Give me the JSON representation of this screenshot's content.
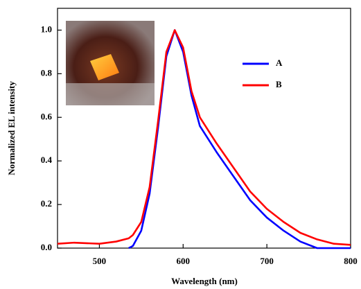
{
  "chart_data": {
    "type": "line",
    "x_label": "Wavelength (nm)",
    "y_label": "Normalized EL intensity",
    "x": [
      450,
      470,
      500,
      520,
      535,
      540,
      550,
      560,
      570,
      580,
      590,
      600,
      610,
      620,
      640,
      660,
      680,
      700,
      720,
      740,
      760,
      780,
      800
    ],
    "series": [
      {
        "name": "A",
        "color": "#0000ff",
        "values": [
          null,
          null,
          null,
          null,
          0,
          0.01,
          0.08,
          0.25,
          0.55,
          0.88,
          1.0,
          0.9,
          0.7,
          0.56,
          0.44,
          0.33,
          0.22,
          0.14,
          0.08,
          0.03,
          0,
          0,
          0
        ]
      },
      {
        "name": "B",
        "color": "#ff0000",
        "values": [
          0.02,
          0.025,
          0.02,
          0.03,
          0.045,
          0.06,
          0.12,
          0.28,
          0.58,
          0.9,
          1.0,
          0.92,
          0.72,
          0.6,
          0.48,
          0.37,
          0.26,
          0.18,
          0.12,
          0.07,
          0.04,
          0.02,
          0.015
        ]
      }
    ],
    "xlim": [
      450,
      800
    ],
    "xticks": [
      500,
      600,
      700,
      800
    ],
    "ylim": [
      0,
      1.1
    ],
    "yticks": [
      {
        "value": 0,
        "label": "0.0"
      },
      {
        "value": 0.2,
        "label": "0.2"
      },
      {
        "value": 0.4,
        "label": "0.4"
      },
      {
        "value": 0.6,
        "label": "0.6"
      },
      {
        "value": 0.8,
        "label": "0.8"
      },
      {
        "value": 1.0,
        "label": "1.0"
      }
    ]
  }
}
